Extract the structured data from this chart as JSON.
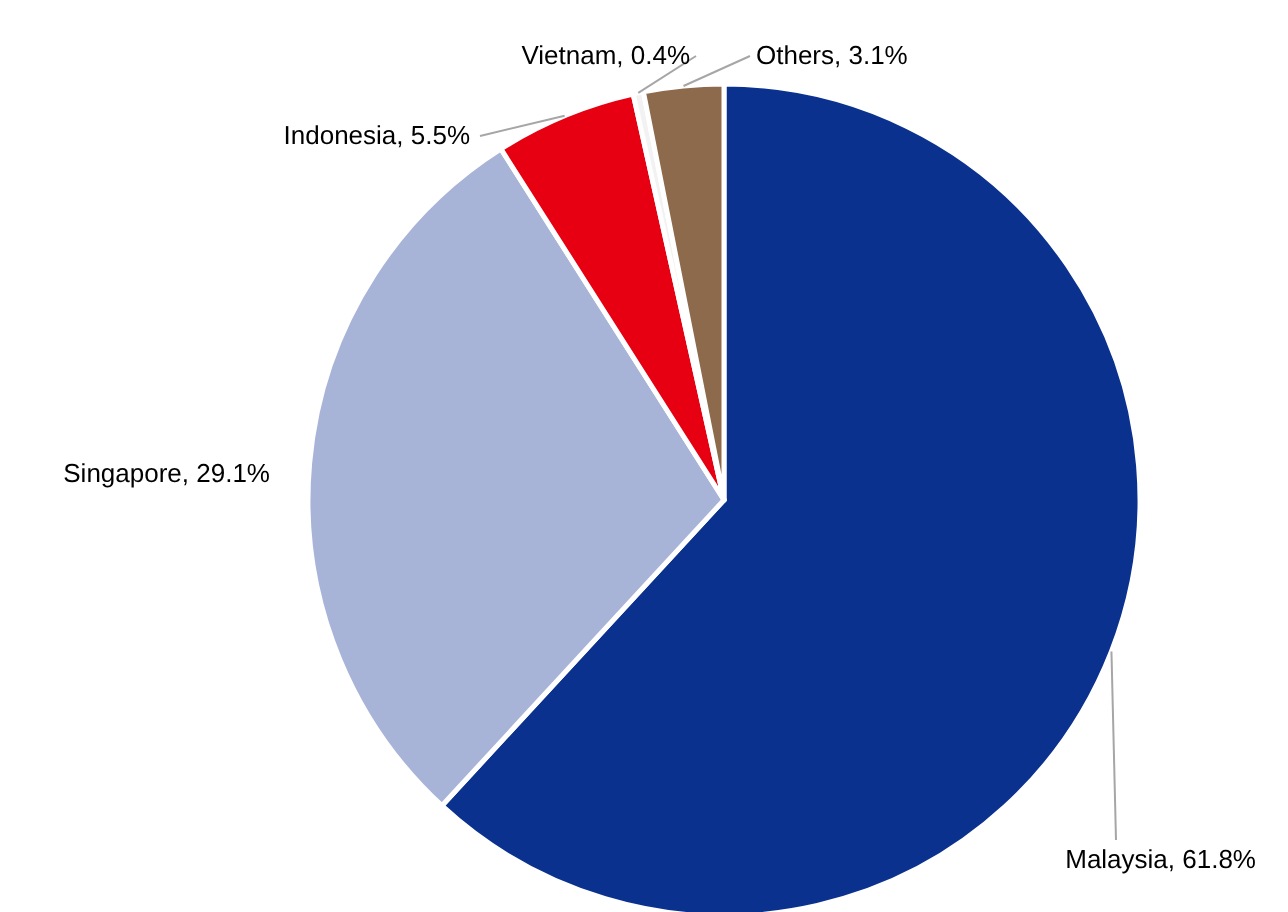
{
  "chart_data": {
    "type": "pie",
    "categories": [
      "Malaysia",
      "Singapore",
      "Indonesia",
      "Vietnam",
      "Others"
    ],
    "values": [
      61.8,
      29.1,
      5.5,
      0.4,
      3.1
    ],
    "colors": [
      "#0b318f",
      "#a8b3d8",
      "#e60012",
      "#f2f2f2",
      "#8c6a4b"
    ],
    "value_labels": [
      "61.8%",
      "29.1%",
      "5.5%",
      "0.4%",
      "3.1%"
    ]
  }
}
